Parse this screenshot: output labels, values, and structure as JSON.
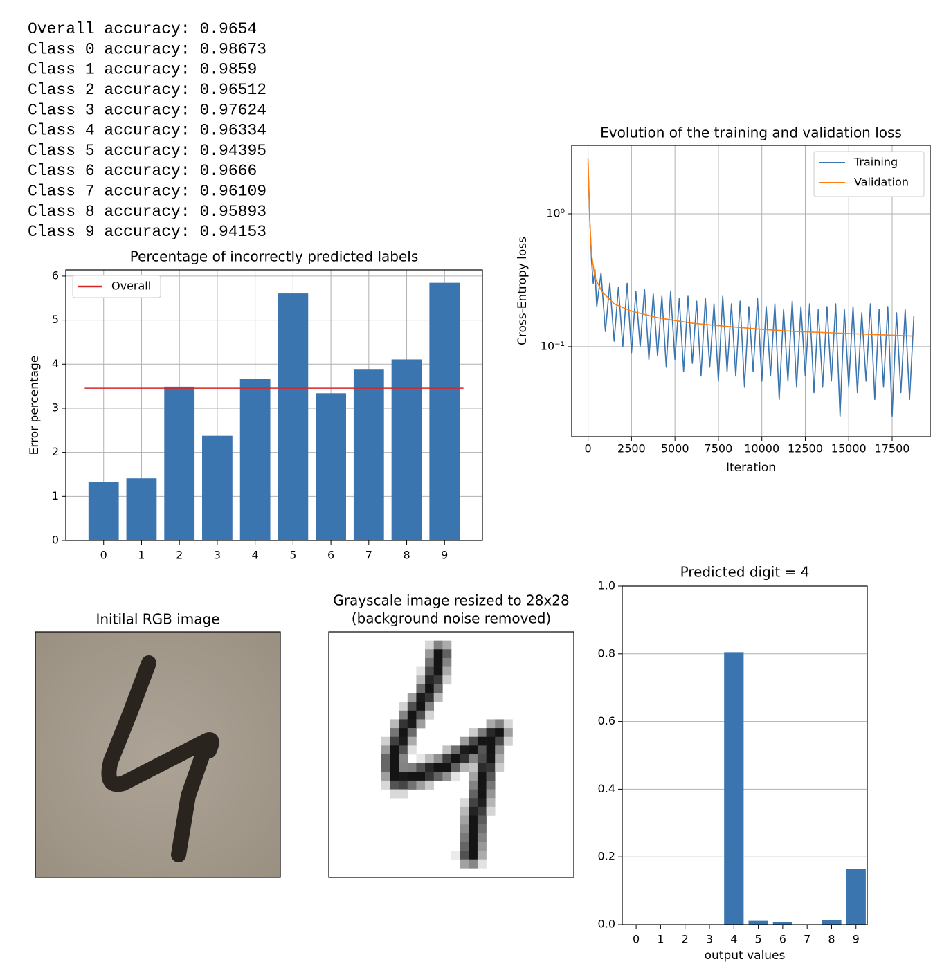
{
  "accuracy_report": {
    "lines": [
      "Overall accuracy: 0.9654",
      "Class 0 accuracy: 0.98673",
      "Class 1 accuracy: 0.9859",
      "Class 2 accuracy: 0.96512",
      "Class 3 accuracy: 0.97624",
      "Class 4 accuracy: 0.96334",
      "Class 5 accuracy: 0.94395",
      "Class 6 accuracy: 0.9666",
      "Class 7 accuracy: 0.96109",
      "Class 8 accuracy: 0.95893",
      "Class 9 accuracy: 0.94153"
    ]
  },
  "chart_data": [
    {
      "type": "bar",
      "title": "Percentage of incorrectly predicted labels",
      "y_label": "Error percentage",
      "categories": [
        "0",
        "1",
        "2",
        "3",
        "4",
        "5",
        "6",
        "7",
        "8",
        "9"
      ],
      "values": [
        1.327,
        1.41,
        3.488,
        2.376,
        3.666,
        5.605,
        3.34,
        3.891,
        4.107,
        5.847
      ],
      "color": "#3a75b0",
      "hline": {
        "name": "Overall",
        "value": 3.46,
        "color": "#d62728"
      },
      "ylim": [
        0,
        6.14
      ],
      "yticks": [
        0,
        1,
        2,
        3,
        4,
        5,
        6
      ],
      "grid": true,
      "legend": "upper-left"
    },
    {
      "type": "line",
      "title": "Evolution of the training and validation loss",
      "x_label": "Iteration",
      "y_label": "Cross-Entropy loss",
      "log_y": true,
      "grid": true,
      "legend": "upper-right",
      "xlim": [
        -940,
        19690
      ],
      "xticks": [
        0,
        2500,
        5000,
        7500,
        10000,
        12500,
        15000,
        17500
      ],
      "ylim": [
        0.021,
        3.28
      ],
      "yticks": [
        {
          "value": 1,
          "label": "10⁰"
        },
        {
          "value": 0.1,
          "label": "10⁻¹"
        }
      ],
      "series": [
        {
          "name": "Training",
          "color": "#3a75b0",
          "x": [
            0,
            100,
            200,
            300,
            400,
            500,
            750,
            1000,
            1250,
            1500,
            1750,
            2000,
            2250,
            2500,
            2750,
            3000,
            3250,
            3500,
            3750,
            4000,
            4250,
            4500,
            4750,
            5000,
            5250,
            5500,
            5750,
            6000,
            6250,
            6500,
            6750,
            7000,
            7250,
            7500,
            7750,
            8000,
            8250,
            8500,
            8750,
            9000,
            9250,
            9500,
            9750,
            10000,
            10250,
            10500,
            10750,
            11000,
            11250,
            11500,
            11750,
            12000,
            12250,
            12500,
            12750,
            13000,
            13250,
            13500,
            13750,
            14000,
            14250,
            14500,
            14750,
            15000,
            15250,
            15500,
            15750,
            16000,
            16250,
            16500,
            16750,
            17000,
            17250,
            17500,
            17750,
            18000,
            18250,
            18500,
            18750
          ],
          "values": [
            2.4,
            0.9,
            0.45,
            0.3,
            0.38,
            0.2,
            0.36,
            0.13,
            0.3,
            0.11,
            0.28,
            0.1,
            0.3,
            0.09,
            0.26,
            0.1,
            0.27,
            0.08,
            0.25,
            0.085,
            0.24,
            0.07,
            0.26,
            0.08,
            0.23,
            0.065,
            0.24,
            0.075,
            0.22,
            0.06,
            0.23,
            0.07,
            0.21,
            0.055,
            0.24,
            0.065,
            0.21,
            0.06,
            0.22,
            0.05,
            0.2,
            0.065,
            0.23,
            0.055,
            0.2,
            0.06,
            0.21,
            0.04,
            0.19,
            0.055,
            0.22,
            0.05,
            0.2,
            0.06,
            0.21,
            0.045,
            0.19,
            0.05,
            0.2,
            0.055,
            0.21,
            0.03,
            0.19,
            0.05,
            0.2,
            0.045,
            0.18,
            0.055,
            0.21,
            0.04,
            0.19,
            0.05,
            0.2,
            0.03,
            0.18,
            0.045,
            0.19,
            0.04,
            0.17
          ]
        },
        {
          "name": "Validation",
          "color": "#ff7f0e",
          "x": [
            0,
            100,
            200,
            400,
            800,
            1500,
            2500,
            4000,
            6000,
            8000,
            10000,
            12000,
            14000,
            16000,
            18750
          ],
          "values": [
            2.6,
            0.9,
            0.5,
            0.33,
            0.26,
            0.21,
            0.185,
            0.165,
            0.15,
            0.142,
            0.135,
            0.13,
            0.127,
            0.124,
            0.12
          ]
        }
      ]
    },
    {
      "type": "bar",
      "title": "Predicted digit = 4",
      "x_label": "output values",
      "categories": [
        "0",
        "1",
        "2",
        "3",
        "4",
        "5",
        "6",
        "7",
        "8",
        "9"
      ],
      "values": [
        0.0005,
        0.0002,
        0.0003,
        0.0002,
        0.805,
        0.011,
        0.008,
        0.001,
        0.014,
        0.165
      ],
      "color": "#3a75b0",
      "ylim": [
        0,
        1
      ],
      "yticks": [
        {
          "value": 0,
          "label": "0.0"
        },
        {
          "value": 0.2,
          "label": "0.2"
        },
        {
          "value": 0.4,
          "label": "0.4"
        },
        {
          "value": 0.6,
          "label": "0.6"
        },
        {
          "value": 0.8,
          "label": "0.8"
        },
        {
          "value": 1,
          "label": "1.0"
        }
      ],
      "grid": "y"
    }
  ],
  "images": [
    {
      "title": [
        "Initilal RGB image"
      ]
    },
    {
      "title": [
        "Grayscale image resized to 28x28",
        "(background noise removed)"
      ]
    }
  ]
}
